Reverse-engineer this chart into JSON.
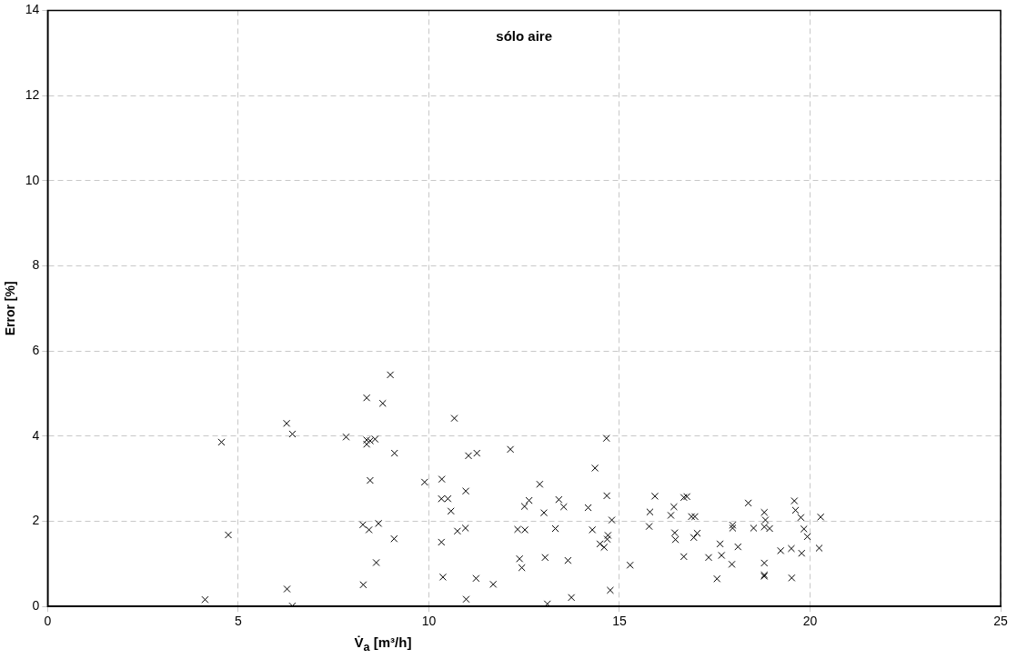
{
  "chart_data": {
    "type": "scatter",
    "annotations": [
      "sólo aire"
    ],
    "xlabel": "V̇$_{a}$ [m³/h]",
    "ylabel": "Error [%]",
    "xlim": [
      0,
      25
    ],
    "xticks": [
      0,
      5,
      10,
      15,
      20,
      25
    ],
    "ylim": [
      0,
      14
    ],
    "yticks": [
      0,
      2,
      4,
      6,
      8,
      10,
      12,
      14
    ],
    "grid": true,
    "legend": false,
    "marker": "cross",
    "series": [
      {
        "color": "#000000",
        "x": [
          4.13,
          4.56,
          4.74,
          6.27,
          6.42,
          6.28,
          6.42,
          7.83,
          8.99,
          8.37,
          8.79,
          10.67,
          8.37,
          8.37,
          8.46,
          8.59,
          9.1,
          8.46,
          9.89,
          10.34,
          11.04,
          11.26,
          12.14,
          14.36,
          14.66,
          10.97,
          10.33,
          10.5,
          10.58,
          12.91,
          12.51,
          12.63,
          13.02,
          13.41,
          13.54,
          14.18,
          14.67,
          14.8,
          8.27,
          8.43,
          8.68,
          9.09,
          10.75,
          10.96,
          10.33,
          12.33,
          12.52,
          13.32,
          14.29,
          14.49,
          14.6,
          14.68,
          14.7,
          8.62,
          12.38,
          12.44,
          13.05,
          13.65,
          15.28,
          8.28,
          10.37,
          11.24,
          11.69,
          10.98,
          13.11,
          13.74,
          14.76,
          15.78,
          15.8,
          15.93,
          16.35,
          16.43,
          16.45,
          16.47,
          16.69,
          16.69,
          16.77,
          16.89,
          16.98,
          16.95,
          17.04,
          17.34,
          17.56,
          17.64,
          17.68,
          17.95,
          17.97,
          17.97,
          18.11,
          18.38,
          18.52,
          18.8,
          18.83,
          18.8,
          18.94,
          18.8,
          18.8,
          18.8,
          19.23,
          19.51,
          19.52,
          19.59,
          19.62,
          19.76,
          19.78,
          19.84,
          19.93,
          20.28,
          20.24
        ],
        "values": [
          0.16,
          3.86,
          1.68,
          4.3,
          4.05,
          0.41,
          0.01,
          3.98,
          5.44,
          4.9,
          4.77,
          4.42,
          3.91,
          3.81,
          3.89,
          3.93,
          3.6,
          2.96,
          2.92,
          2.99,
          3.54,
          3.6,
          3.69,
          3.25,
          3.95,
          2.71,
          2.53,
          2.53,
          2.24,
          2.87,
          2.35,
          2.49,
          2.2,
          2.51,
          2.34,
          2.32,
          2.6,
          2.03,
          1.92,
          1.8,
          1.95,
          1.59,
          1.77,
          1.84,
          1.51,
          1.81,
          1.8,
          1.83,
          1.8,
          1.47,
          1.39,
          1.58,
          1.67,
          1.03,
          1.12,
          0.91,
          1.15,
          1.08,
          0.97,
          0.51,
          0.69,
          0.66,
          0.52,
          0.17,
          0.06,
          0.21,
          0.38,
          1.88,
          2.22,
          2.59,
          2.14,
          2.34,
          1.73,
          1.57,
          1.17,
          2.56,
          2.58,
          2.11,
          2.11,
          1.62,
          1.72,
          1.15,
          0.65,
          1.47,
          1.2,
          0.99,
          1.91,
          1.84,
          1.4,
          2.43,
          1.84,
          2.21,
          2.03,
          1.87,
          1.83,
          1.02,
          0.74,
          0.71,
          1.31,
          1.36,
          0.67,
          2.48,
          2.26,
          2.09,
          1.25,
          1.82,
          1.64,
          2.1,
          1.37
        ]
      }
    ]
  }
}
